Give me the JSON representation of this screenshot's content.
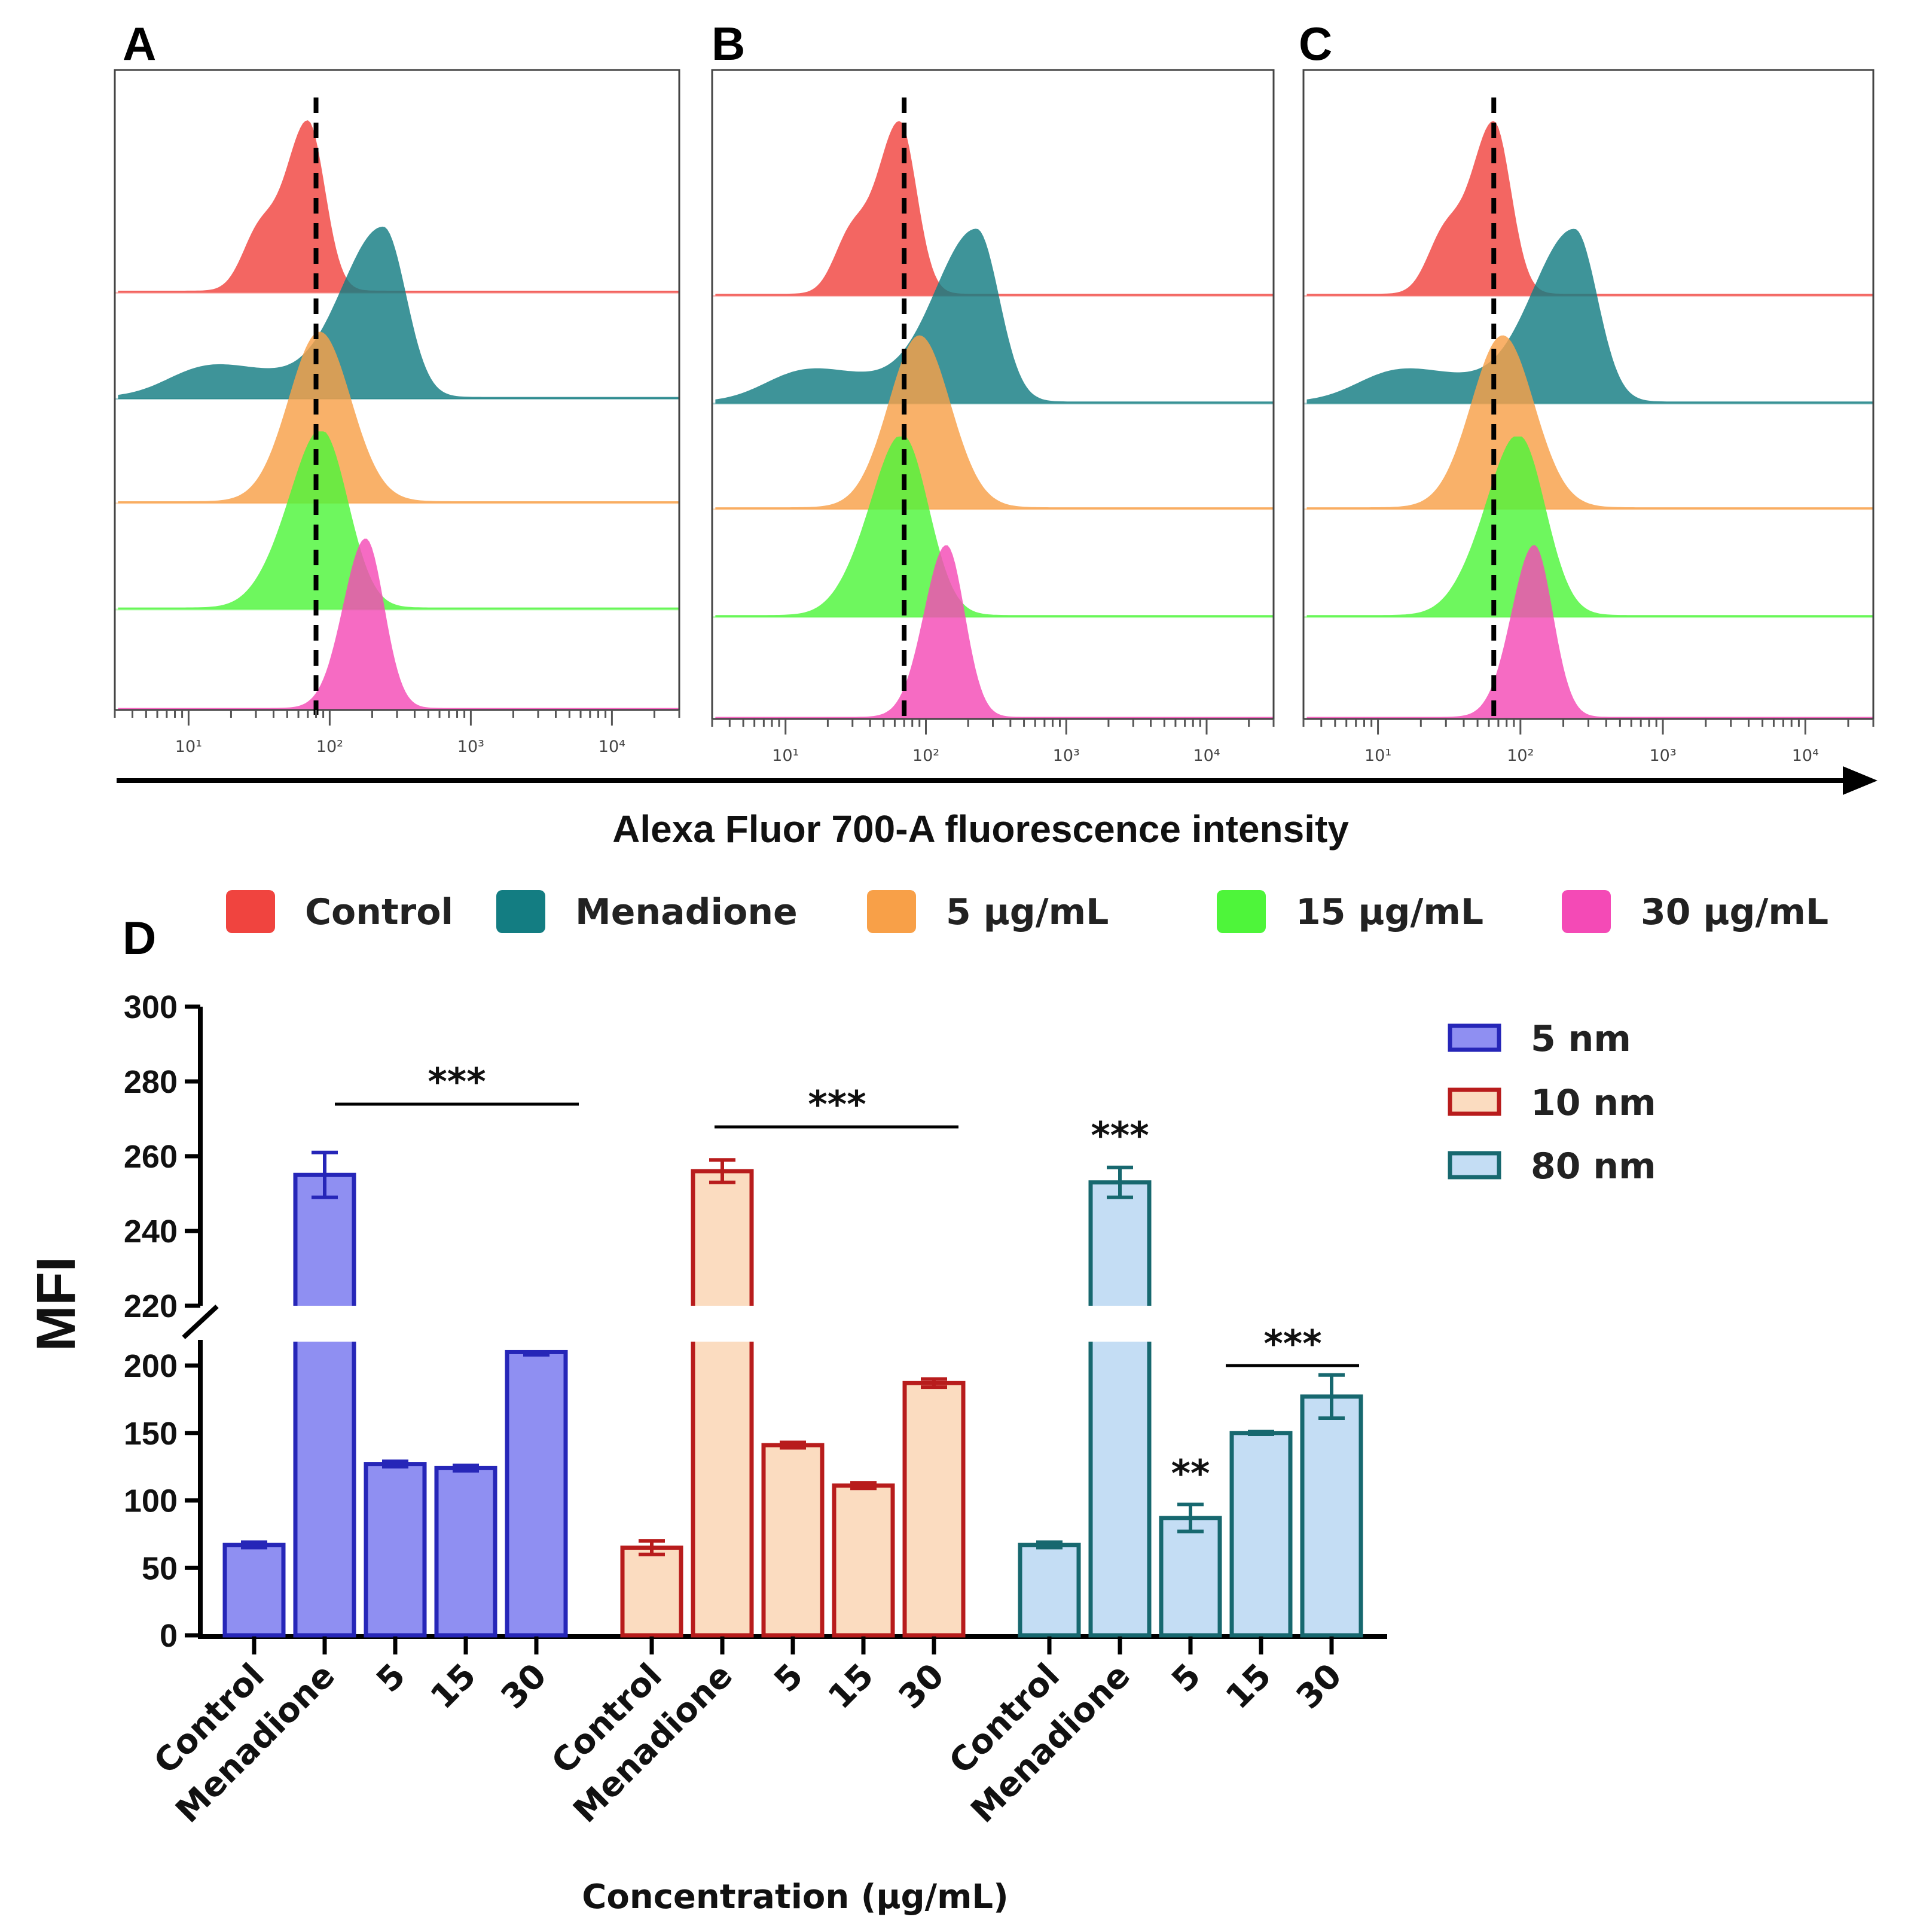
{
  "chart_data": [
    {
      "panel": "A",
      "type": "area",
      "subtype": "flow-cytometry-histogram-overlay",
      "xscale": "log",
      "xlim": [
        3,
        30000
      ],
      "xtick_labels": [
        "10¹",
        "10²",
        "10³",
        "10⁴"
      ],
      "xtick_values": [
        10,
        100,
        1000,
        10000
      ],
      "reference_line_x": 80,
      "series": [
        {
          "name": "Control",
          "color": "#f0443f",
          "peak_x": 70
        },
        {
          "name": "Menadione",
          "color": "#137d82",
          "peak_x": 240
        },
        {
          "name": "5 μg/mL",
          "color": "#f8a048",
          "peak_x": 85
        },
        {
          "name": "15 μg/mL",
          "color": "#4ef53a",
          "peak_x": 90
        },
        {
          "name": "30 μg/mL",
          "color": "#f44ab6",
          "peak_x": 180
        }
      ]
    },
    {
      "panel": "B",
      "type": "area",
      "subtype": "flow-cytometry-histogram-overlay",
      "xscale": "log",
      "xlim": [
        3,
        30000
      ],
      "xtick_labels": [
        "10¹",
        "10²",
        "10³",
        "10⁴"
      ],
      "xtick_values": [
        10,
        100,
        1000,
        10000
      ],
      "reference_line_x": 70,
      "series": [
        {
          "name": "Control",
          "color": "#f0443f",
          "peak_x": 65
        },
        {
          "name": "Menadione",
          "color": "#137d82",
          "peak_x": 230
        },
        {
          "name": "5 μg/mL",
          "color": "#f8a048",
          "peak_x": 90
        },
        {
          "name": "15 μg/mL",
          "color": "#4ef53a",
          "peak_x": 70
        },
        {
          "name": "30 μg/mL",
          "color": "#f44ab6",
          "peak_x": 140
        }
      ]
    },
    {
      "panel": "C",
      "type": "area",
      "subtype": "flow-cytometry-histogram-overlay",
      "xscale": "log",
      "xlim": [
        3,
        30000
      ],
      "xtick_labels": [
        "10¹",
        "10²",
        "10³",
        "10⁴"
      ],
      "xtick_values": [
        10,
        100,
        1000,
        10000
      ],
      "reference_line_x": 65,
      "series": [
        {
          "name": "Control",
          "color": "#f0443f",
          "peak_x": 65
        },
        {
          "name": "Menadione",
          "color": "#137d82",
          "peak_x": 240
        },
        {
          "name": "5 μg/mL",
          "color": "#f8a048",
          "peak_x": 75
        },
        {
          "name": "15 μg/mL",
          "color": "#4ef53a",
          "peak_x": 100
        },
        {
          "name": "30 μg/mL",
          "color": "#f44ab6",
          "peak_x": 125
        }
      ]
    },
    {
      "panel": "D",
      "type": "bar",
      "ylabel": "MFI",
      "xlabel": "Concentration (μg/mL)",
      "ylim_lower": [
        0,
        210
      ],
      "ylim_upper": [
        220,
        300
      ],
      "yticks_lower": [
        0,
        50,
        100,
        150,
        200
      ],
      "yticks_upper": [
        220,
        240,
        260,
        280,
        300
      ],
      "categories": [
        "Control",
        "Menadione",
        "5",
        "15",
        "30"
      ],
      "series": [
        {
          "name": "5 nm",
          "fill": "#8f8ff2",
          "stroke": "#2626b8",
          "values": [
            67,
            255,
            127,
            124,
            210
          ],
          "errors": [
            2,
            6,
            2,
            2,
            2
          ]
        },
        {
          "name": "10 nm",
          "fill": "#fbdcc0",
          "stroke": "#b81c1c",
          "values": [
            65,
            256,
            141,
            111,
            187
          ],
          "errors": [
            5,
            3,
            2,
            2,
            3
          ]
        },
        {
          "name": "80 nm",
          "fill": "#c4ddf4",
          "stroke": "#17686f",
          "values": [
            67,
            253,
            87,
            150,
            177
          ],
          "errors": [
            2,
            4,
            10,
            1,
            16
          ]
        }
      ],
      "annotations": [
        {
          "group": "5 nm",
          "text": "***",
          "span": [
            "Menadione",
            "30"
          ]
        },
        {
          "group": "10 nm",
          "text": "***",
          "span": [
            "Menadione",
            "30"
          ]
        },
        {
          "group": "80 nm",
          "text": "***",
          "over": "Menadione"
        },
        {
          "group": "80 nm",
          "text": "**",
          "over": "5"
        },
        {
          "group": "80 nm",
          "text": "***",
          "span": [
            "15",
            "30"
          ]
        }
      ]
    }
  ],
  "figure": {
    "panel_labels": [
      "A",
      "B",
      "C",
      "D"
    ],
    "shared_xlabel": "Alexa Fluor 700-A fluorescence intensity",
    "histogram_legend": [
      {
        "label": "Control",
        "color": "#f0443f"
      },
      {
        "label": "Menadione",
        "color": "#137d82"
      },
      {
        "label": "5 μg/mL",
        "color": "#f8a048"
      },
      {
        "label": "15 μg/mL",
        "color": "#4ef53a"
      },
      {
        "label": "30 μg/mL",
        "color": "#f44ab6"
      }
    ],
    "bar_legend": [
      {
        "label": "5 nm",
        "fill": "#8f8ff2",
        "stroke": "#2626b8"
      },
      {
        "label": "10 nm",
        "fill": "#fbdcc0",
        "stroke": "#b81c1c"
      },
      {
        "label": "80 nm",
        "fill": "#c4ddf4",
        "stroke": "#17686f"
      }
    ]
  }
}
